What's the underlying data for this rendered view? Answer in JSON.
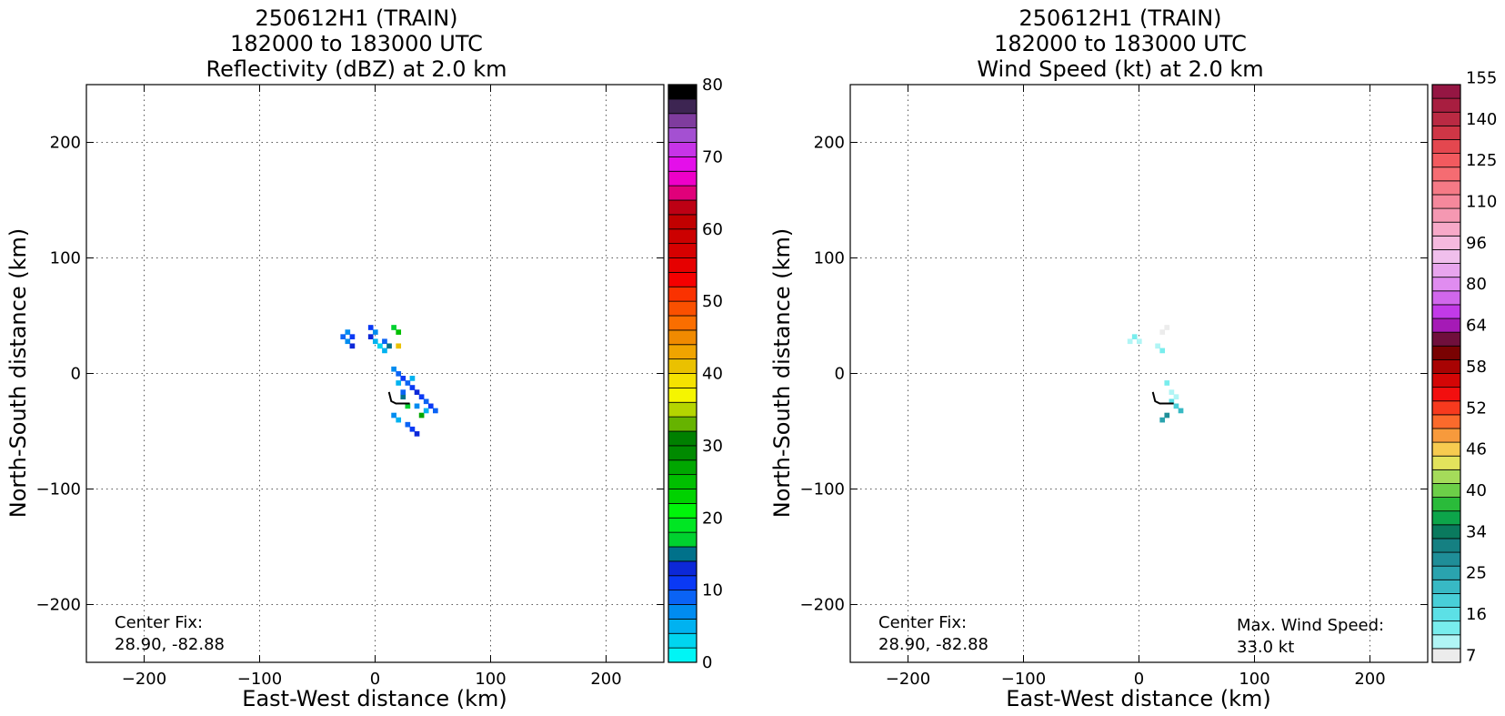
{
  "chart_data": [
    {
      "type": "heatmap",
      "id": "refl",
      "title_lines": [
        "250612H1 (TRAIN)",
        "182000 to 183000 UTC",
        "Reflectivity (dBZ) at 2.0 km"
      ],
      "xlabel": "East-West distance (km)",
      "ylabel": "North-South distance (km)",
      "xlim": [
        -250,
        250
      ],
      "ylim": [
        -250,
        250
      ],
      "xticks": [
        -200,
        -100,
        0,
        100,
        200
      ],
      "yticks": [
        -200,
        -100,
        0,
        100,
        200
      ],
      "xtick_labels": [
        "−200",
        "−100",
        "0",
        "100",
        "200"
      ],
      "ytick_labels": [
        "−200",
        "−100",
        "0",
        "100",
        "200"
      ],
      "grid": true,
      "annotations": [
        {
          "lines": [
            "Center Fix:",
            "28.90, -82.88"
          ],
          "position": "bottom-left"
        }
      ],
      "colorbar": {
        "min": 0,
        "max": 80,
        "ticks": [
          0,
          10,
          20,
          30,
          40,
          50,
          60,
          70,
          80
        ],
        "tick_labels": [
          "0",
          "10",
          "20",
          "30",
          "40",
          "50",
          "60",
          "70",
          "80"
        ],
        "colors": [
          "#00f5f5",
          "#00d5f0",
          "#00b2f0",
          "#008cf0",
          "#0a63f5",
          "#0a39f5",
          "#0c28d8",
          "#00718a",
          "#00d12f",
          "#00e623",
          "#00f50a",
          "#00d200",
          "#00bf00",
          "#00a700",
          "#008a00",
          "#008000",
          "#66b300",
          "#b5d500",
          "#f5f500",
          "#f5e200",
          "#eac100",
          "#f0a400",
          "#f08a00",
          "#fa6e00",
          "#fa5000",
          "#fa3200",
          "#f50000",
          "#e60000",
          "#d60000",
          "#cc0000",
          "#c10000",
          "#bd0014",
          "#e0007a",
          "#ee00c9",
          "#e40fea",
          "#c734e8",
          "#a450d2",
          "#7f3c9e",
          "#3d2552",
          "#000000"
        ]
      },
      "data": {
        "cells_km": [
          [
            -28,
            32,
            "#0a63f5"
          ],
          [
            -24,
            28,
            "#008cf0"
          ],
          [
            -24,
            36,
            "#008cf0"
          ],
          [
            -20,
            32,
            "#0a39f5"
          ],
          [
            -20,
            24,
            "#0c28d8"
          ],
          [
            -4,
            40,
            "#0a39f5"
          ],
          [
            -4,
            32,
            "#0c28d8"
          ],
          [
            0,
            36,
            "#008cf0"
          ],
          [
            0,
            28,
            "#00b2f0"
          ],
          [
            4,
            24,
            "#00d5f0"
          ],
          [
            8,
            20,
            "#00b2f0"
          ],
          [
            8,
            28,
            "#0a63f5"
          ],
          [
            12,
            24,
            "#00718a"
          ],
          [
            16,
            40,
            "#00d12f"
          ],
          [
            20,
            36,
            "#00bf00"
          ],
          [
            20,
            24,
            "#eac100"
          ],
          [
            16,
            4,
            "#008cf0"
          ],
          [
            20,
            0,
            "#0a63f5"
          ],
          [
            24,
            -4,
            "#0a39f5"
          ],
          [
            28,
            -8,
            "#0a63f5"
          ],
          [
            32,
            -12,
            "#0a39f5"
          ],
          [
            36,
            -16,
            "#0c28d8"
          ],
          [
            40,
            -20,
            "#0a39f5"
          ],
          [
            44,
            -24,
            "#0a63f5"
          ],
          [
            48,
            -28,
            "#0a39f5"
          ],
          [
            52,
            -32,
            "#0a63f5"
          ],
          [
            40,
            -36,
            "#00a700"
          ],
          [
            20,
            -8,
            "#00b2f0"
          ],
          [
            24,
            -20,
            "#00718a"
          ],
          [
            28,
            -28,
            "#00d12f"
          ],
          [
            16,
            -36,
            "#008cf0"
          ],
          [
            20,
            -40,
            "#00b2f0"
          ],
          [
            28,
            -44,
            "#0a63f5"
          ],
          [
            32,
            -48,
            "#0a39f5"
          ],
          [
            36,
            -52,
            "#0c28d8"
          ],
          [
            24,
            -16,
            "#0a63f5"
          ],
          [
            32,
            -4,
            "#00b2f0"
          ],
          [
            36,
            -28,
            "#008cf0"
          ],
          [
            44,
            -32,
            "#00b2f0"
          ]
        ],
        "track_km": [
          [
            12,
            -16
          ],
          [
            14,
            -24
          ],
          [
            18,
            -26
          ],
          [
            30,
            -26
          ]
        ]
      }
    },
    {
      "type": "heatmap",
      "id": "wind",
      "title_lines": [
        "250612H1 (TRAIN)",
        "182000 to 183000 UTC",
        "Wind Speed (kt) at 2.0 km"
      ],
      "xlabel": "East-West distance (km)",
      "ylabel": "North-South distance (km)",
      "xlim": [
        -250,
        250
      ],
      "ylim": [
        -250,
        250
      ],
      "xticks": [
        -200,
        -100,
        0,
        100,
        200
      ],
      "yticks": [
        -200,
        -100,
        0,
        100,
        200
      ],
      "xtick_labels": [
        "−200",
        "−100",
        "0",
        "100",
        "200"
      ],
      "ytick_labels": [
        "−200",
        "−100",
        "0",
        "100",
        "200"
      ],
      "grid": true,
      "annotations": [
        {
          "lines": [
            "Center Fix:",
            "28.90, -82.88"
          ],
          "position": "bottom-left"
        },
        {
          "lines": [
            "Max. Wind Speed:",
            "33.0 kt"
          ],
          "position": "bottom-right"
        }
      ],
      "colorbar": {
        "min": 7,
        "max": 160,
        "tick_labels": [
          "7",
          "16",
          "25",
          "34",
          "40",
          "46",
          "52",
          "58",
          "64",
          "80",
          "96",
          "110",
          "125",
          "140",
          "155"
        ],
        "tick_bins": [
          0,
          3,
          6,
          9,
          12,
          15,
          18,
          21,
          24,
          27,
          30,
          33,
          36,
          39,
          42
        ],
        "colors": [
          "#ececec",
          "#b0f5f5",
          "#78eded",
          "#5ce0e6",
          "#48cfd8",
          "#38b9c4",
          "#2aa3ae",
          "#1f8e98",
          "#158082",
          "#0a7a5e",
          "#0da54a",
          "#2abb3a",
          "#6ccf48",
          "#a5db5a",
          "#e3e35c",
          "#f7cb50",
          "#f79a3c",
          "#fb6a2c",
          "#f73a1e",
          "#f20f0f",
          "#d40606",
          "#a80303",
          "#7a0202",
          "#700f3c",
          "#a51ab6",
          "#c23ae8",
          "#d167ec",
          "#e08cf0",
          "#e8a5ee",
          "#f0bfec",
          "#f5b9de",
          "#f7a9c8",
          "#f598b2",
          "#f5889c",
          "#f57a86",
          "#f56c72",
          "#f25a5f",
          "#e4474f",
          "#cf3646",
          "#ba2a43",
          "#a81e40",
          "#951643"
        ]
      },
      "data": {
        "cells_km": [
          [
            -4,
            32,
            "#78eded"
          ],
          [
            0,
            28,
            "#b0f5f5"
          ],
          [
            -8,
            28,
            "#b0f5f5"
          ],
          [
            16,
            24,
            "#b0f5f5"
          ],
          [
            20,
            20,
            "#78eded"
          ],
          [
            20,
            36,
            "#ececec"
          ],
          [
            24,
            40,
            "#ececec"
          ],
          [
            24,
            -8,
            "#78eded"
          ],
          [
            28,
            -16,
            "#b0f5f5"
          ],
          [
            28,
            -24,
            "#5ce0e6"
          ],
          [
            32,
            -28,
            "#48cfd8"
          ],
          [
            36,
            -32,
            "#38b9c4"
          ],
          [
            24,
            -36,
            "#1f8e98"
          ],
          [
            20,
            -40,
            "#2aa3ae"
          ],
          [
            32,
            -20,
            "#b0f5f5"
          ]
        ],
        "track_km": [
          [
            12,
            -16
          ],
          [
            14,
            -24
          ],
          [
            18,
            -26
          ],
          [
            30,
            -26
          ]
        ]
      }
    }
  ]
}
